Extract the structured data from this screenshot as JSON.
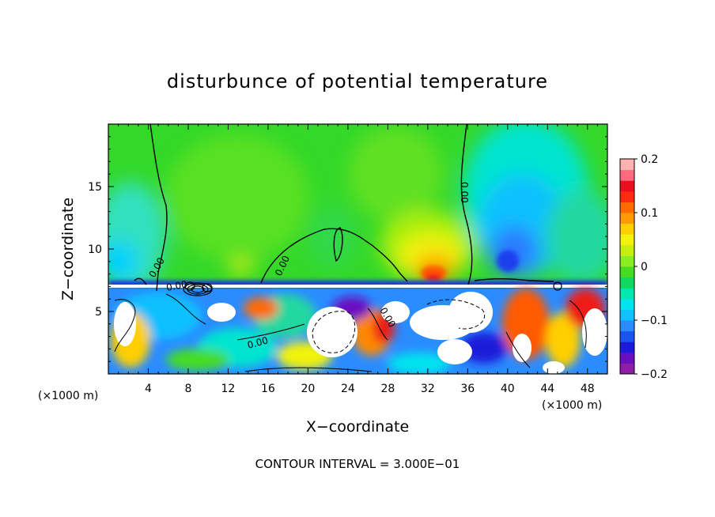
{
  "chart_data": {
    "type": "heatmap",
    "title": "disturbunce of potential temperature",
    "xlabel": "X−coordinate",
    "ylabel": "Z−coordinate",
    "x_unit": "(×1000 m)",
    "x_unit_right": "(×1000 m)",
    "xlim": [
      0,
      50
    ],
    "ylim": [
      0,
      20
    ],
    "x_ticks": [
      4,
      8,
      12,
      16,
      20,
      24,
      28,
      32,
      36,
      40,
      44,
      48
    ],
    "y_ticks": [
      5,
      10,
      15
    ],
    "colorbar": {
      "range": [
        -0.2,
        0.2
      ],
      "ticks": [
        {
          "value": 0.2,
          "label": "0.2"
        },
        {
          "value": 0.1,
          "label": "0.1"
        },
        {
          "value": 0,
          "label": "0"
        },
        {
          "value": -0.1,
          "label": "−0.1"
        },
        {
          "value": -0.2,
          "label": "−0.2"
        }
      ],
      "colors": [
        "#8e1ea8",
        "#6a0fc0",
        "#1a1ad8",
        "#1a55ee",
        "#2a8cff",
        "#10c0ff",
        "#00e4ee",
        "#00e8b0",
        "#10d860",
        "#44dd22",
        "#88ee22",
        "#c8ee10",
        "#f2f20a",
        "#ffcf00",
        "#ff9a00",
        "#ff6a00",
        "#ff2a10",
        "#e8101c",
        "#ff6a80",
        "#ffb2b4"
      ]
    },
    "contour_labels": [
      "0.00",
      "0.00",
      "0.00",
      "0.00",
      "0.00",
      "0.00"
    ],
    "footer": "CONTOUR INTERVAL = 3.000E−01"
  }
}
